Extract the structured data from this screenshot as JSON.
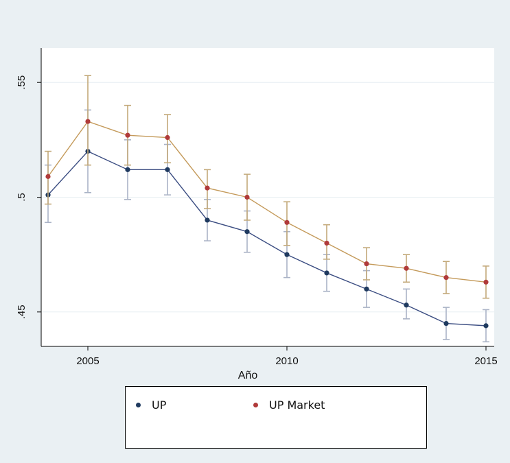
{
  "chart_data": {
    "type": "line",
    "title": "",
    "xlabel": "Año",
    "ylabel": "",
    "x": [
      2004,
      2005,
      2006,
      2007,
      2008,
      2009,
      2010,
      2011,
      2012,
      2013,
      2014,
      2015
    ],
    "xlim": [
      2004,
      2015
    ],
    "ylim": [
      0.435,
      0.565
    ],
    "xticks": [
      2005,
      2010,
      2015
    ],
    "xtick_labels": [
      "2005",
      "2010",
      "2015"
    ],
    "yticks": [
      0.45,
      0.5,
      0.55
    ],
    "ytick_labels": [
      ".45",
      ".5",
      ".55"
    ],
    "grid": "horizontal",
    "legend_position": "bottom",
    "series": [
      {
        "name": "UP",
        "color": "#1f3a5f",
        "bar_color": "#aab3c6",
        "values": [
          0.501,
          0.52,
          0.512,
          0.512,
          0.49,
          0.485,
          0.475,
          0.467,
          0.46,
          0.453,
          0.445,
          0.444
        ],
        "lower": [
          0.489,
          0.502,
          0.499,
          0.501,
          0.481,
          0.476,
          0.465,
          0.459,
          0.452,
          0.447,
          0.438,
          0.437
        ],
        "upper": [
          0.514,
          0.538,
          0.525,
          0.523,
          0.499,
          0.494,
          0.485,
          0.475,
          0.468,
          0.46,
          0.452,
          0.451
        ]
      },
      {
        "name": "UP Market",
        "color": "#b03a3a",
        "bar_color": "#c3a97a",
        "values": [
          0.509,
          0.533,
          0.527,
          0.526,
          0.504,
          0.5,
          0.489,
          0.48,
          0.471,
          0.469,
          0.465,
          0.463
        ],
        "lower": [
          0.497,
          0.514,
          0.514,
          0.515,
          0.495,
          0.49,
          0.479,
          0.473,
          0.464,
          0.463,
          0.458,
          0.456
        ],
        "upper": [
          0.52,
          0.553,
          0.54,
          0.536,
          0.512,
          0.51,
          0.498,
          0.488,
          0.478,
          0.475,
          0.472,
          0.47
        ]
      }
    ]
  }
}
